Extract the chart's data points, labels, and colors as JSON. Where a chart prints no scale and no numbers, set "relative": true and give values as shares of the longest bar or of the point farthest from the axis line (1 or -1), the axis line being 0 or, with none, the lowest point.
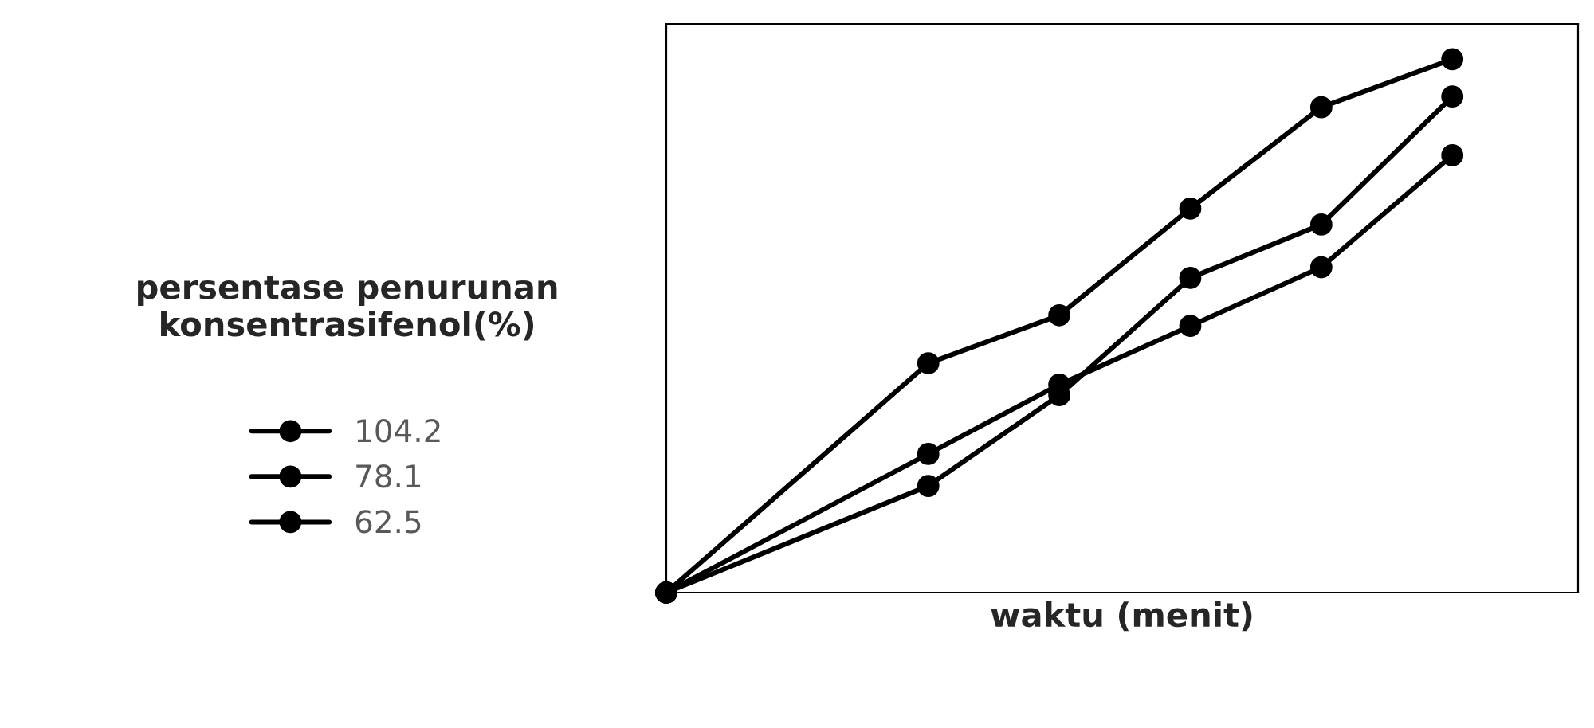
{
  "chart_data": {
    "type": "line",
    "relative": true,
    "xlabel": "waktu (menit)",
    "ylabel": "persentase penurunan\nkonsentrasifenol(%)",
    "categories": [
      null,
      null,
      null,
      null,
      null,
      null,
      null
    ],
    "series": [
      {
        "name": "104.2",
        "color": "#000000",
        "values": [
          0,
          null,
          0.43,
          0.52,
          0.72,
          0.91,
          1.0
        ]
      },
      {
        "name": "78.1",
        "color": "#000000",
        "values": [
          0,
          null,
          0.2,
          0.37,
          0.59,
          0.69,
          0.93
        ]
      },
      {
        "name": "62.5",
        "color": "#000000",
        "values": [
          0,
          null,
          0.26,
          0.39,
          0.5,
          0.61,
          0.82
        ]
      }
    ],
    "marker": "circle",
    "line_style": "solid",
    "legend": "left"
  }
}
